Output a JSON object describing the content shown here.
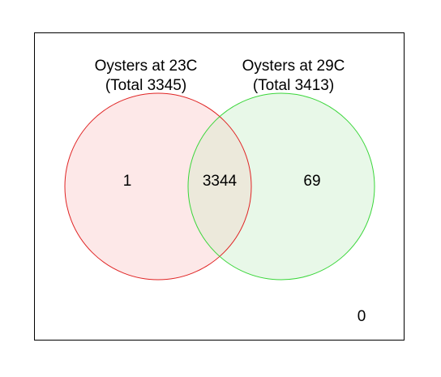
{
  "sets": [
    {
      "name": "Oysters at 23C",
      "total_label": "(Total 3345)",
      "stroke": "#e02424",
      "fill": "#fde8e8"
    },
    {
      "name": "Oysters at 29C",
      "total_label": "(Total 3413)",
      "stroke": "#3ad63a",
      "fill": "#e8f8e8"
    }
  ],
  "intersection_fill": "#ece9db",
  "regions": {
    "only_first": "1",
    "both": "3344",
    "only_second": "69",
    "neither": "0"
  }
}
